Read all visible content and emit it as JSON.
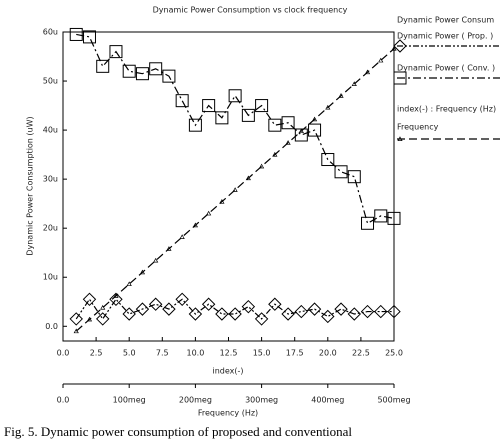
{
  "chart_data": {
    "type": "line",
    "title": "Dynamic Power Consumption vs clock frequency",
    "ylabel": "Dynamic Power Consumption (uW)",
    "xlabel": "index(-)",
    "x2label": "Frequency (Hz)",
    "caption": "Fig. 5.  Dynamic power consumption of proposed and conventional",
    "legend_groups": [
      "Dynamic Power Consum",
      "index(-) : Frequency (Hz)"
    ],
    "x": [
      1,
      2,
      3,
      4,
      5,
      6,
      7,
      8,
      9,
      10,
      11,
      12,
      13,
      14,
      15,
      16,
      17,
      18,
      19,
      20,
      21,
      22,
      23,
      24,
      25
    ],
    "series": [
      {
        "name": "Dynamic Power ( Prop. )",
        "color": "#000000",
        "marker": "diamond",
        "dash": "6,2,2,2,2,2",
        "group": 0,
        "values": [
          1.5,
          5.5,
          1.5,
          5.5,
          2.5,
          3.5,
          4.5,
          3.5,
          5.5,
          2.5,
          4.5,
          2.5,
          2.5,
          4,
          1.5,
          4.5,
          2.5,
          3,
          3.5,
          2,
          3.5,
          2.5,
          3,
          3,
          3
        ]
      },
      {
        "name": "Dynamic Power ( Conv. )",
        "color": "#000000",
        "marker": "square",
        "dash": "8,3,2,3",
        "group": 0,
        "values": [
          59.5,
          59,
          53,
          56,
          52,
          51.5,
          52.5,
          51,
          46,
          41,
          45,
          42.5,
          47,
          43,
          45,
          41,
          41.5,
          39,
          40,
          34,
          31.5,
          30.5,
          21,
          22.5,
          22
        ]
      },
      {
        "name": "Frequency",
        "color": "#000000",
        "marker": "triangle",
        "dash": "8,4",
        "group": 1,
        "values": [
          -1.0,
          1.4,
          3.8,
          6.2,
          8.6,
          11.0,
          13.4,
          15.8,
          18.2,
          20.6,
          23.0,
          25.4,
          27.8,
          30.2,
          32.6,
          35.0,
          37.4,
          39.8,
          42.2,
          44.6,
          47.0,
          49.4,
          51.8,
          54.2,
          56.6
        ]
      }
    ],
    "xlim": [
      0,
      25
    ],
    "xticks": [
      {
        "value": 0,
        "label": "0.0"
      },
      2.5,
      {
        "value": 5,
        "label": "5.0"
      },
      7.5,
      {
        "value": 10,
        "label": "10.0"
      },
      12.5,
      {
        "value": 15,
        "label": "15.0"
      },
      17.5,
      {
        "value": 20,
        "label": "20.0"
      },
      22.5,
      {
        "value": 25,
        "label": "25.0"
      }
    ],
    "x2lim": [
      0,
      500000000
    ],
    "x2ticks": [
      {
        "value": 0,
        "label": "0.0"
      },
      {
        "value": 100000000,
        "label": "100meg"
      },
      {
        "value": 200000000,
        "label": "200meg"
      },
      {
        "value": 300000000,
        "label": "300meg"
      },
      {
        "value": 400000000,
        "label": "400meg"
      },
      {
        "value": 500000000,
        "label": "500meg"
      }
    ],
    "ylim": [
      -3,
      60
    ],
    "yticks": [
      {
        "value": 0,
        "label": "0.0"
      },
      {
        "value": 10,
        "label": "10u"
      },
      {
        "value": 20,
        "label": "20u"
      },
      {
        "value": 30,
        "label": "30u"
      },
      {
        "value": 40,
        "label": "40u"
      },
      {
        "value": 50,
        "label": "50u"
      },
      {
        "value": 60,
        "label": "60u"
      }
    ]
  }
}
